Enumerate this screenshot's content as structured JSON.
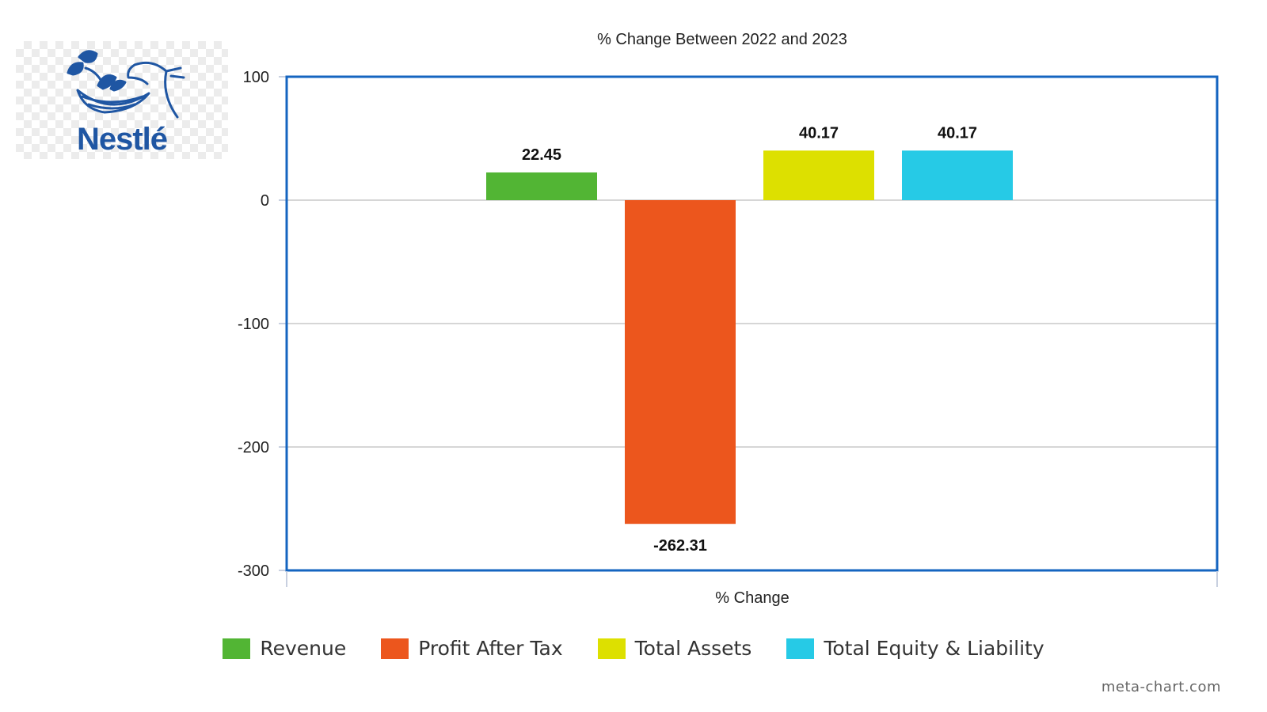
{
  "logo": {
    "text": "Nestlé",
    "icon": "nest-birds-icon"
  },
  "credit": "meta-chart.com",
  "colors": {
    "frame": "#1565c0",
    "grid": "#c8c8c8"
  },
  "chart_data": {
    "type": "bar",
    "title": "% Change Between 2022 and 2023",
    "xlabel": "% Change",
    "ylabel": "",
    "ylim": [
      -300,
      100
    ],
    "yticks": [
      "100",
      "0",
      "-100",
      "-200",
      "-300"
    ],
    "grid": true,
    "legend_position": "bottom",
    "series": [
      {
        "name": "Revenue",
        "value": 22.45,
        "label": "22.45",
        "color": "#52b534"
      },
      {
        "name": "Profit After Tax",
        "value": -262.31,
        "label": "-262.31",
        "color": "#ec561d"
      },
      {
        "name": "Total Assets",
        "value": 40.17,
        "label": "40.17",
        "color": "#dde000"
      },
      {
        "name": "Total Equity & Liability",
        "value": 40.17,
        "label": "40.17",
        "color": "#26cae6"
      }
    ]
  }
}
